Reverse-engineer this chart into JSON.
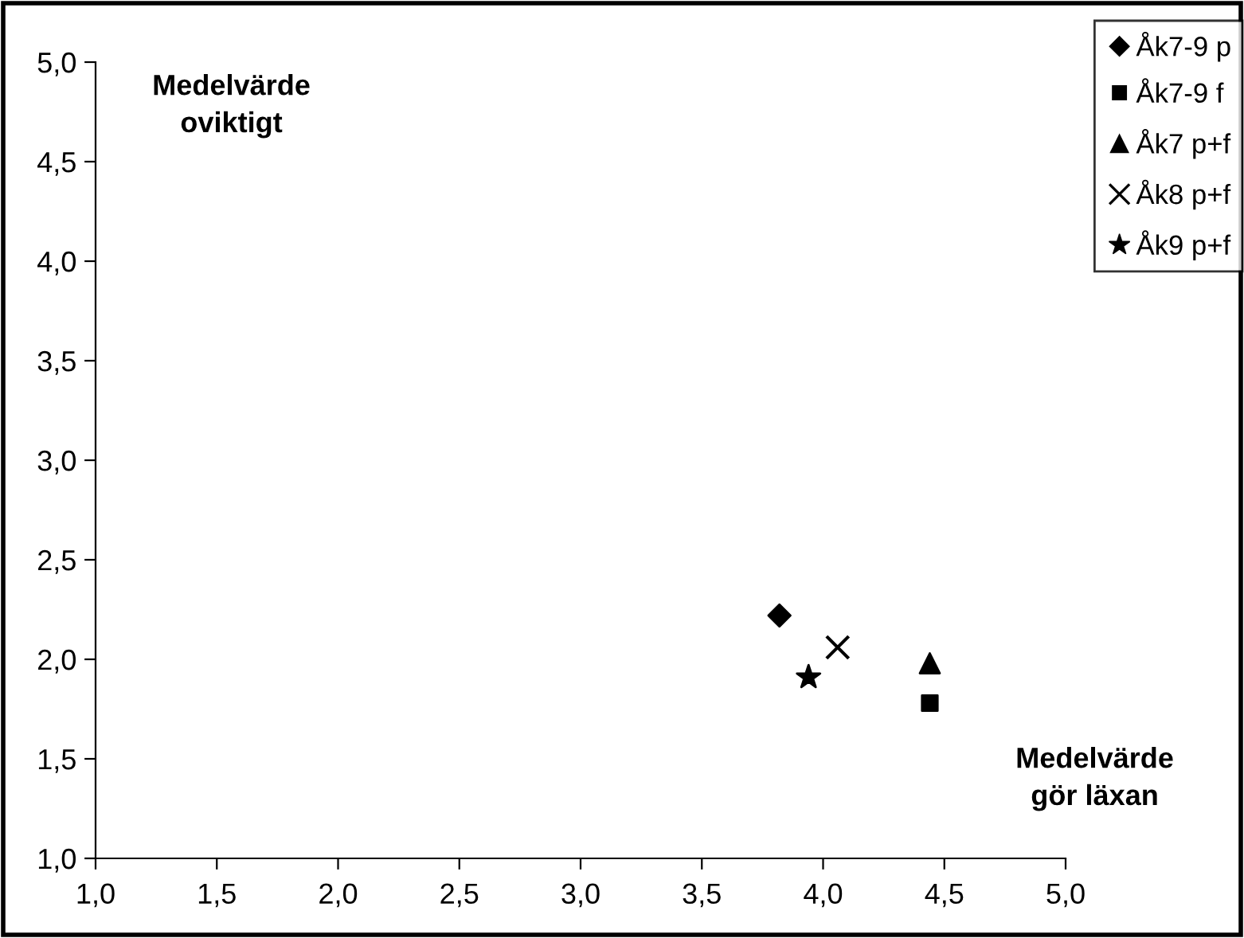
{
  "chart_data": {
    "type": "scatter",
    "xlabel": "Medelvärde\ngör läxan",
    "ylabel": "Medelvärde\noviktigt",
    "xlim": [
      1.0,
      5.0
    ],
    "ylim": [
      1.0,
      5.0
    ],
    "xticks": [
      {
        "value": 1.0,
        "label": "1,0"
      },
      {
        "value": 1.5,
        "label": "1,5"
      },
      {
        "value": 2.0,
        "label": "2,0"
      },
      {
        "value": 2.5,
        "label": "2,5"
      },
      {
        "value": 3.0,
        "label": "3,0"
      },
      {
        "value": 3.5,
        "label": "3,5"
      },
      {
        "value": 4.0,
        "label": "4,0"
      },
      {
        "value": 4.5,
        "label": "4,5"
      },
      {
        "value": 5.0,
        "label": "5,0"
      }
    ],
    "yticks": [
      {
        "value": 1.0,
        "label": "1,0"
      },
      {
        "value": 1.5,
        "label": "1,5"
      },
      {
        "value": 2.0,
        "label": "2,0"
      },
      {
        "value": 2.5,
        "label": "2,5"
      },
      {
        "value": 3.0,
        "label": "3,0"
      },
      {
        "value": 3.5,
        "label": "3,5"
      },
      {
        "value": 4.0,
        "label": "4,0"
      },
      {
        "value": 4.5,
        "label": "4,5"
      },
      {
        "value": 5.0,
        "label": "5,0"
      }
    ],
    "grid": false,
    "legend": "top right",
    "series": [
      {
        "name": "Åk7-9 p",
        "color": "#000000",
        "marker": "diamond",
        "x": [
          3.82
        ],
        "values": [
          2.22
        ]
      },
      {
        "name": "Åk7-9 f",
        "color": "#000000",
        "marker": "square",
        "x": [
          4.44
        ],
        "values": [
          1.78
        ]
      },
      {
        "name": "Åk7 p+f",
        "color": "#000000",
        "marker": "triangle",
        "x": [
          4.44
        ],
        "values": [
          1.98
        ]
      },
      {
        "name": "Åk8 p+f",
        "color": "#000000",
        "marker": "cross",
        "x": [
          4.06
        ],
        "values": [
          2.06
        ]
      },
      {
        "name": "Åk9 p+f",
        "color": "#000000",
        "marker": "star",
        "x": [
          3.94
        ],
        "values": [
          1.91
        ]
      }
    ]
  }
}
